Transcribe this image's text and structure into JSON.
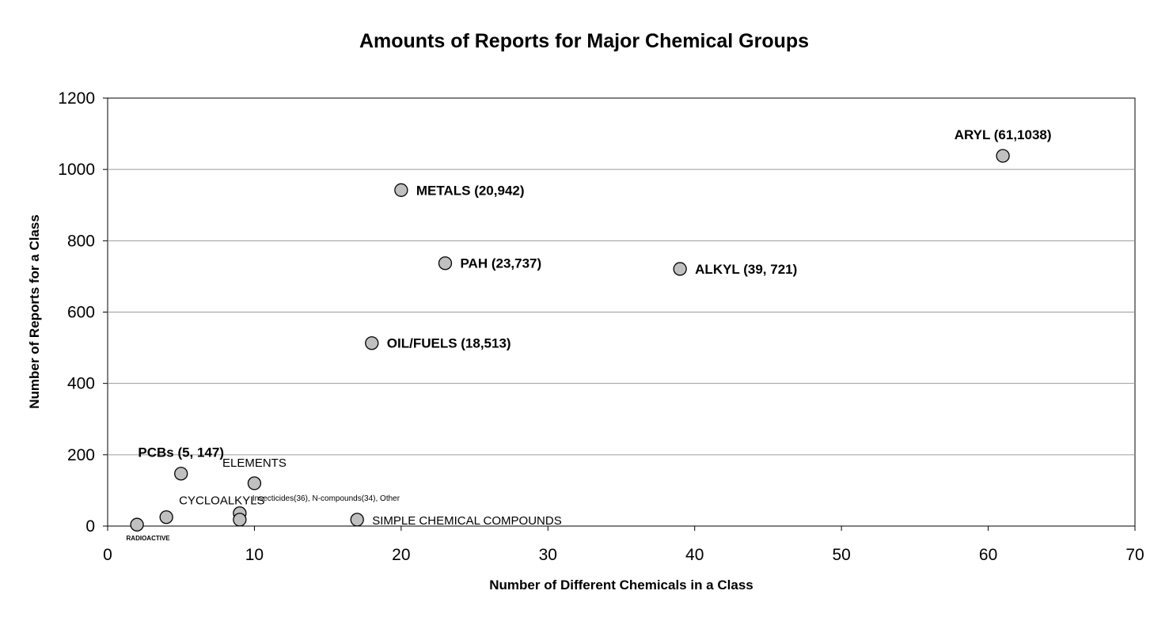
{
  "chart_data": {
    "type": "scatter",
    "title": "Amounts of Reports for Major Chemical Groups",
    "xlabel": "Number of Different Chemicals in a Class",
    "ylabel": "Number of Reports for a Class",
    "xlim": [
      0,
      70
    ],
    "ylim": [
      0,
      1200
    ],
    "xticks": [
      0,
      10,
      20,
      30,
      40,
      50,
      60,
      70
    ],
    "yticks": [
      0,
      200,
      400,
      600,
      800,
      1000,
      1200
    ],
    "grid": "horizontal",
    "legend": "none",
    "marker_color": "#c0c0c0",
    "points": [
      {
        "x": 61,
        "y": 1038,
        "label": "ARYL (61,1038)",
        "style": "bold",
        "pos": "above"
      },
      {
        "x": 20,
        "y": 942,
        "label": "METALS (20,942)",
        "style": "bold",
        "pos": "right"
      },
      {
        "x": 23,
        "y": 737,
        "label": "PAH (23,737)",
        "style": "bold",
        "pos": "right"
      },
      {
        "x": 39,
        "y": 721,
        "label": "ALKYL (39, 721)",
        "style": "bold",
        "pos": "right"
      },
      {
        "x": 18,
        "y": 513,
        "label": "OIL/FUELS (18,513)",
        "style": "bold",
        "pos": "right"
      },
      {
        "x": 5,
        "y": 147,
        "label": "PCBs (5, 147)",
        "style": "bold",
        "pos": "above"
      },
      {
        "x": 10,
        "y": 120,
        "label": "ELEMENTS",
        "style": "plain",
        "pos": "above"
      },
      {
        "x": 4,
        "y": 25,
        "label": "CYCLOALKYLS",
        "style": "plain",
        "pos": "above-right"
      },
      {
        "x": 9,
        "y": 36,
        "label": "Insecticides(36), N-compounds(34), Other",
        "style": "small",
        "pos": "above-right"
      },
      {
        "x": 9,
        "y": 18,
        "label": "",
        "style": "none",
        "pos": "none"
      },
      {
        "x": 17,
        "y": 18,
        "label": "SIMPLE CHEMICAL COMPOUNDS",
        "style": "plain",
        "pos": "right"
      },
      {
        "x": 2,
        "y": 4,
        "label": "RADIOACTIVE",
        "style": "tiny",
        "pos": "below"
      }
    ]
  }
}
